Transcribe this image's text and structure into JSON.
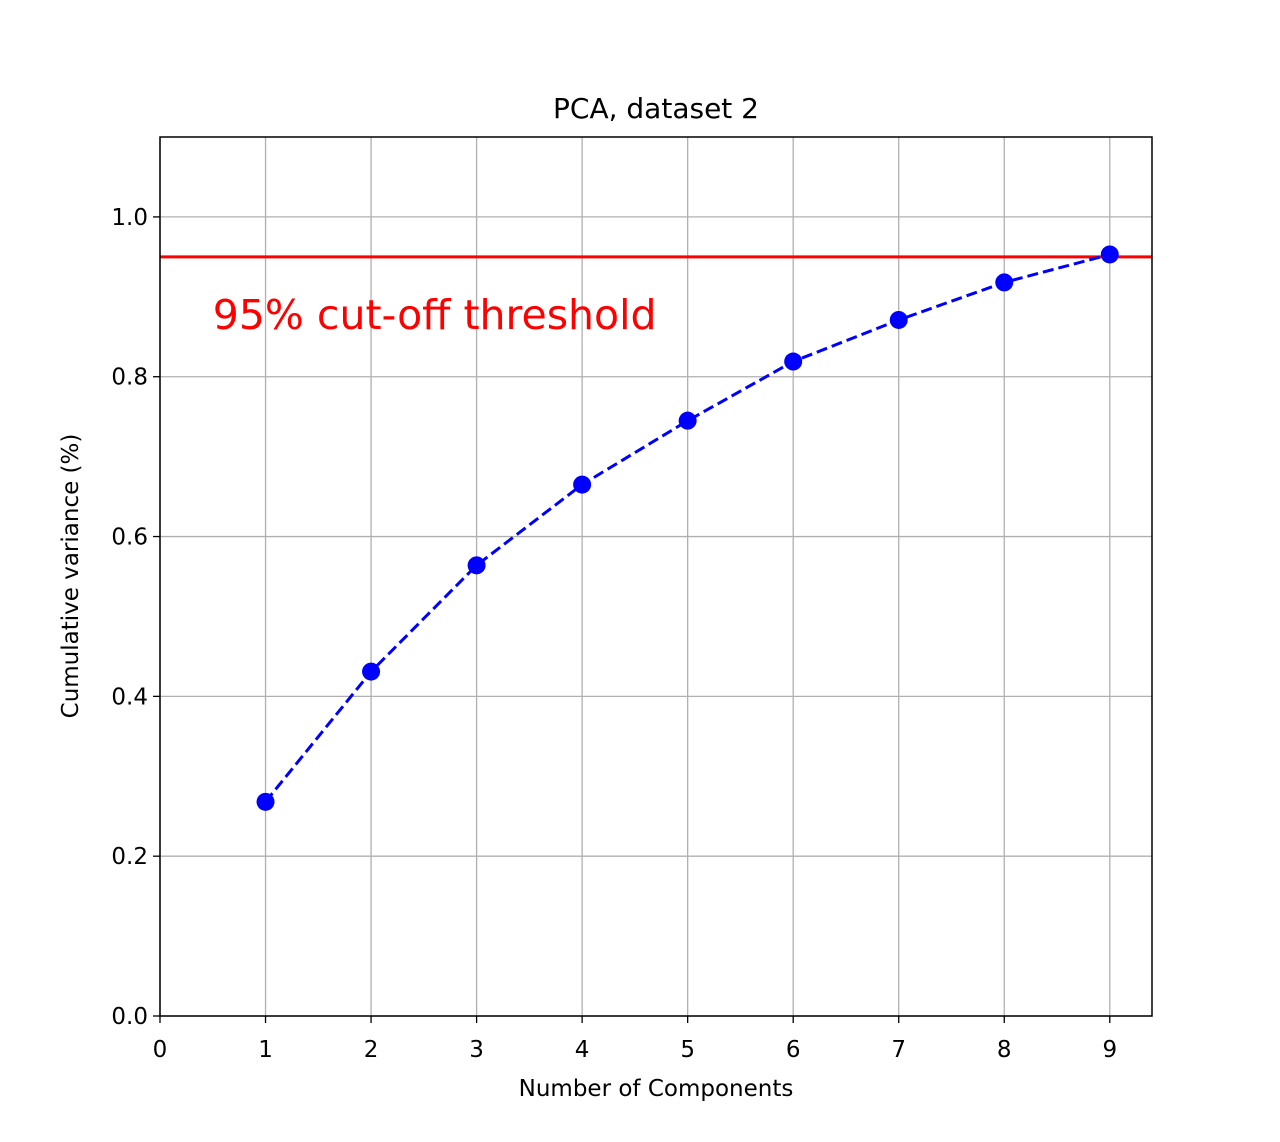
{
  "chart_data": {
    "type": "line",
    "title": "PCA, dataset 2",
    "xlabel": "Number of Components",
    "ylabel": "Cumulative variance (%)",
    "xlim": [
      0,
      9.4
    ],
    "ylim": [
      0,
      1.1
    ],
    "x_ticks": [
      "0",
      "1",
      "2",
      "3",
      "4",
      "5",
      "6",
      "7",
      "8",
      "9"
    ],
    "y_ticks": [
      "0.0",
      "0.2",
      "0.4",
      "0.6",
      "0.8",
      "1.0"
    ],
    "grid": true,
    "series": [
      {
        "x": [
          1,
          2,
          3,
          4,
          5,
          6,
          7,
          8,
          9
        ],
        "values": [
          0.268,
          0.431,
          0.564,
          0.665,
          0.745,
          0.819,
          0.871,
          0.918,
          0.953
        ],
        "color": "#0000ff",
        "line_style": "dashed",
        "marker": "circle"
      }
    ],
    "reference_lines": [
      {
        "orientation": "horizontal",
        "y": 0.95,
        "color": "#ff0000"
      }
    ],
    "annotations": [
      {
        "text": "95% cut-off threshold",
        "x": 0.5,
        "y": 0.86,
        "color": "#ff0000"
      }
    ]
  }
}
